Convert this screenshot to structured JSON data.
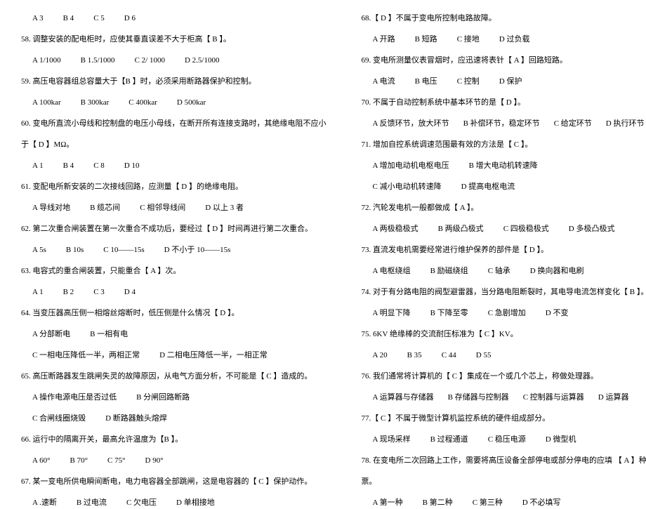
{
  "left": [
    {
      "type": "opts",
      "items": [
        "A  3",
        "B  4",
        "C  5",
        "D  6"
      ]
    },
    {
      "type": "q",
      "text": "58. 调整安装的配电柜时，应使其垂直误差不大于柜高【  B  】。"
    },
    {
      "type": "opts",
      "items": [
        "A  1/1000",
        "B  1.5/1000",
        "C  2/ 1000",
        "D  2.5/1000"
      ]
    },
    {
      "type": "q",
      "text": "59. 高压电容器组总容量大于【B   】时，必须采用断路器保护和控制。"
    },
    {
      "type": "opts",
      "items": [
        "A  100kar",
        "B  300kar",
        "C  400kar",
        "D  500kar"
      ]
    },
    {
      "type": "q",
      "text": "60. 变电所直流小母线和控制盘的电压小母线，在断开所有连接支路时，其绝缘电阻不应小"
    },
    {
      "type": "q",
      "text": "于【 D 】MΩ。"
    },
    {
      "type": "opts",
      "items": [
        "A  1",
        "B  4",
        "C  8",
        "D  10"
      ]
    },
    {
      "type": "q",
      "text": "61. 变配电所新安装的二次接线回路，应测量【 D 】的绝缘电阻。"
    },
    {
      "type": "opts",
      "items": [
        "A 导线对地",
        "B  缆芯间",
        "C 相邻导线间",
        "D 以上 3 者"
      ]
    },
    {
      "type": "q",
      "text": "62. 第二次重合闸装置在第一次重合不成功后，要经过【  D 】时间再进行第二次重合。"
    },
    {
      "type": "opts",
      "items": [
        "A  5s",
        "B  10s",
        "C  10——15s",
        "D  不小于 10——15s"
      ]
    },
    {
      "type": "q",
      "text": "63. 电容式的重合闸装置，只能重合【 A  】次。"
    },
    {
      "type": "opts",
      "items": [
        "A  1",
        "B  2",
        "C  3",
        "D  4"
      ]
    },
    {
      "type": "q",
      "text": "64. 当变压器高压侧一相熔丝熔断时，低压侧是什么情况【 D 】。"
    },
    {
      "type": "opts",
      "items": [
        "A  分部断电",
        "",
        "B  一相有电",
        ""
      ]
    },
    {
      "type": "opts",
      "items": [
        "C 一相电压降低一半，两相正常",
        "",
        "D 二相电压降低一半，一相正常",
        ""
      ]
    },
    {
      "type": "q",
      "text": "65. 高压断路器发生跳闸失灵的故障原因，从电气方面分析，不可能是【  C  】造成的。"
    },
    {
      "type": "opts",
      "items": [
        "A 操作电源电压是否过低",
        "",
        "B 分闸回路断路",
        ""
      ]
    },
    {
      "type": "opts",
      "items": [
        "C 合闸线圈烧毁",
        "",
        "D 断路器触头熔焊",
        ""
      ]
    },
    {
      "type": "q",
      "text": "66. 运行中的隔离开关，最高允许温度为【B  】。"
    },
    {
      "type": "opts",
      "items": [
        "A  60°",
        "B  70°",
        "C  75°",
        "D  90°"
      ]
    },
    {
      "type": "q",
      "text": "67. 某一变电所供电瞬间断电，电力电容器全部跳闸，这是电容器的【 C  】保护动作。"
    },
    {
      "type": "opts",
      "items": [
        "A .速断",
        "B 过电流",
        "C 欠电压",
        "D 单相接地"
      ]
    }
  ],
  "right": [
    {
      "type": "q",
      "text": "68.【 D 】不属于变电所控制电路故障。"
    },
    {
      "type": "opts",
      "items": [
        "A 开路",
        "B 短路",
        "C 接地",
        "D 过负载"
      ]
    },
    {
      "type": "q",
      "text": "69. 变电所测量仪表冒烟时，应迅速将表针【 A 】回路短路。"
    },
    {
      "type": "opts",
      "items": [
        "A 电流",
        "B 电压",
        "C 控制",
        "D 保护"
      ]
    },
    {
      "type": "q",
      "text": "70. 不属于自动控制系统中基本环节的是【  D 】。"
    },
    {
      "type": "opts",
      "items": [
        "A 反馈环节，放大环节",
        "B 补偿环节，稳定环节",
        "C 给定环节",
        "D 执行环节"
      ],
      "wide": true
    },
    {
      "type": "q",
      "text": "71. 增加自控系统调速范围最有效的方法是【 C  】。"
    },
    {
      "type": "opts",
      "items": [
        "A 增加电动机电枢电压",
        "",
        "B 增大电动机转速降",
        ""
      ]
    },
    {
      "type": "opts",
      "items": [
        "C 减小电动机转速降",
        "",
        "D 提高电枢电流",
        ""
      ]
    },
    {
      "type": "q",
      "text": "72. 汽轮发电机一般都做成【 A  】。"
    },
    {
      "type": "opts",
      "items": [
        "A 两极稳极式",
        "B 两级凸极式",
        "C 四极稳极式",
        "D 多极凸极式"
      ]
    },
    {
      "type": "q",
      "text": "73. 直流发电机需要经常进行维护保养的部件是【 D 】。"
    },
    {
      "type": "opts",
      "items": [
        "A 电枢绕组",
        "B 励磁绕组",
        "C 轴承",
        "D 换向器和电刷"
      ]
    },
    {
      "type": "q",
      "text": "74. 对于有分路电阻的阀型避雷器，当分路电阻断裂时，其电导电流怎样变化【 B  】。"
    },
    {
      "type": "opts",
      "items": [
        "A 明显下降",
        "B 下降至零",
        "C 急剧增加",
        "D 不变"
      ]
    },
    {
      "type": "q",
      "text": "75. 6KV 绝缘棒的交流耐压标准为【 C  】KV。"
    },
    {
      "type": "opts",
      "items": [
        "A  20",
        "B  35",
        "C  44",
        "D  55"
      ]
    },
    {
      "type": "q",
      "text": "76. 我们通常将计算机的【 C  】集成在一个或几个芯上，称做处理器。"
    },
    {
      "type": "opts",
      "items": [
        "A 运算器与存储器",
        "B 存储器与控制器",
        "C 控制器与运算器",
        "D 运算器"
      ],
      "wide": true
    },
    {
      "type": "q",
      "text": "77.【  C 】不属于微型计算机监控系统的硬件组成部分。"
    },
    {
      "type": "opts",
      "items": [
        "A 现场采样",
        "B 过程通道",
        "C 稳压电源",
        "D 微型机"
      ]
    },
    {
      "type": "q",
      "text": "78. 在变电所二次回路上工作，需要将高压设备全部停电或部分停电的应填 【 A  】种工作"
    },
    {
      "type": "q",
      "text": "票。"
    },
    {
      "type": "opts",
      "items": [
        "A 第一种",
        "B 第二种",
        "C 第三种",
        "D 不必填写"
      ]
    }
  ]
}
